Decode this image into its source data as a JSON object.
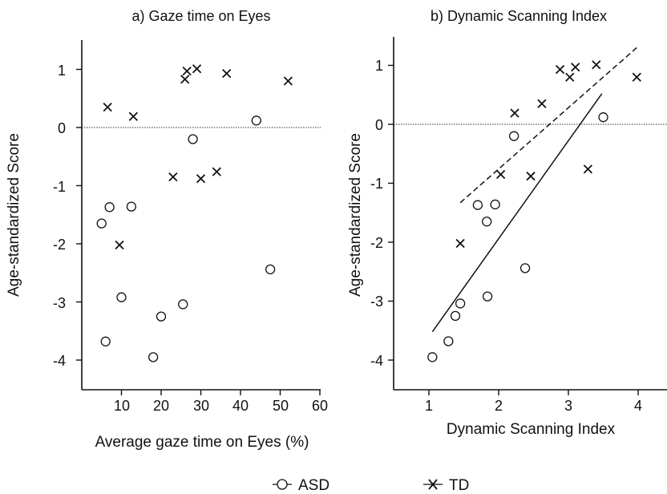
{
  "legend": [
    {
      "label": "ASD",
      "marker": "circle"
    },
    {
      "label": "TD",
      "marker": "cross"
    }
  ],
  "chart_data": [
    {
      "type": "scatter",
      "title": "a) Gaze time on Eyes",
      "xlabel": "Average gaze time on Eyes (%)",
      "ylabel": "Age-standardized Score",
      "xlim": [
        0,
        60
      ],
      "ylim": [
        -4.5,
        1.5
      ],
      "xticks": [
        "10",
        "20",
        "30",
        "40",
        "50",
        "60"
      ],
      "yticks": [
        "1",
        "0",
        "-1",
        "-2",
        "-3",
        "-4"
      ],
      "reference_line_y": 0,
      "series": [
        {
          "name": "ASD",
          "marker": "circle",
          "points": [
            [
              5,
              -1.65
            ],
            [
              6,
              -3.68
            ],
            [
              7,
              -1.37
            ],
            [
              10,
              -2.92
            ],
            [
              12.5,
              -1.36
            ],
            [
              18,
              -3.95
            ],
            [
              20,
              -3.25
            ],
            [
              25.5,
              -3.04
            ],
            [
              28,
              -0.2
            ],
            [
              44,
              0.12
            ],
            [
              47.5,
              -2.44
            ]
          ]
        },
        {
          "name": "TD",
          "marker": "cross",
          "points": [
            [
              6.5,
              0.35
            ],
            [
              9.5,
              -2.02
            ],
            [
              13,
              0.19
            ],
            [
              23,
              -0.85
            ],
            [
              26,
              0.83
            ],
            [
              26.5,
              0.97
            ],
            [
              29,
              1.01
            ],
            [
              30,
              -0.88
            ],
            [
              34,
              -0.76
            ],
            [
              36.5,
              0.93
            ],
            [
              52,
              0.8
            ]
          ]
        }
      ]
    },
    {
      "type": "scatter",
      "title": "b) Dynamic Scanning Index",
      "xlabel": "Dynamic Scanning Index",
      "ylabel": "Age-standardized Score",
      "xlim": [
        0.6,
        4.4
      ],
      "ylim": [
        -4.5,
        1.5
      ],
      "xticks": [
        "1",
        "2",
        "3",
        "4"
      ],
      "yticks": [
        "1",
        "0",
        "-1",
        "-2",
        "-3",
        "-4"
      ],
      "reference_line_y": 0,
      "series": [
        {
          "name": "ASD",
          "marker": "circle",
          "points": [
            [
              1.05,
              -3.95
            ],
            [
              1.28,
              -3.68
            ],
            [
              1.38,
              -3.25
            ],
            [
              1.45,
              -3.04
            ],
            [
              1.7,
              -1.37
            ],
            [
              1.83,
              -1.65
            ],
            [
              1.84,
              -2.92
            ],
            [
              1.95,
              -1.36
            ],
            [
              2.22,
              -0.2
            ],
            [
              2.38,
              -2.44
            ],
            [
              3.5,
              0.12
            ]
          ]
        },
        {
          "name": "TD",
          "marker": "cross",
          "points": [
            [
              1.45,
              -2.02
            ],
            [
              2.03,
              -0.85
            ],
            [
              2.23,
              0.19
            ],
            [
              2.46,
              -0.88
            ],
            [
              2.62,
              0.35
            ],
            [
              2.88,
              0.93
            ],
            [
              3.02,
              0.8
            ],
            [
              3.1,
              0.97
            ],
            [
              3.28,
              -0.76
            ],
            [
              3.4,
              1.01
            ],
            [
              3.98,
              0.8
            ]
          ]
        }
      ],
      "fit_lines": [
        {
          "series": "ASD",
          "style": "solid",
          "from": [
            1.05,
            -3.52
          ],
          "to": [
            3.48,
            0.52
          ]
        },
        {
          "series": "TD",
          "style": "dashed",
          "from": [
            1.45,
            -1.33
          ],
          "to": [
            3.98,
            1.3
          ]
        }
      ]
    }
  ]
}
